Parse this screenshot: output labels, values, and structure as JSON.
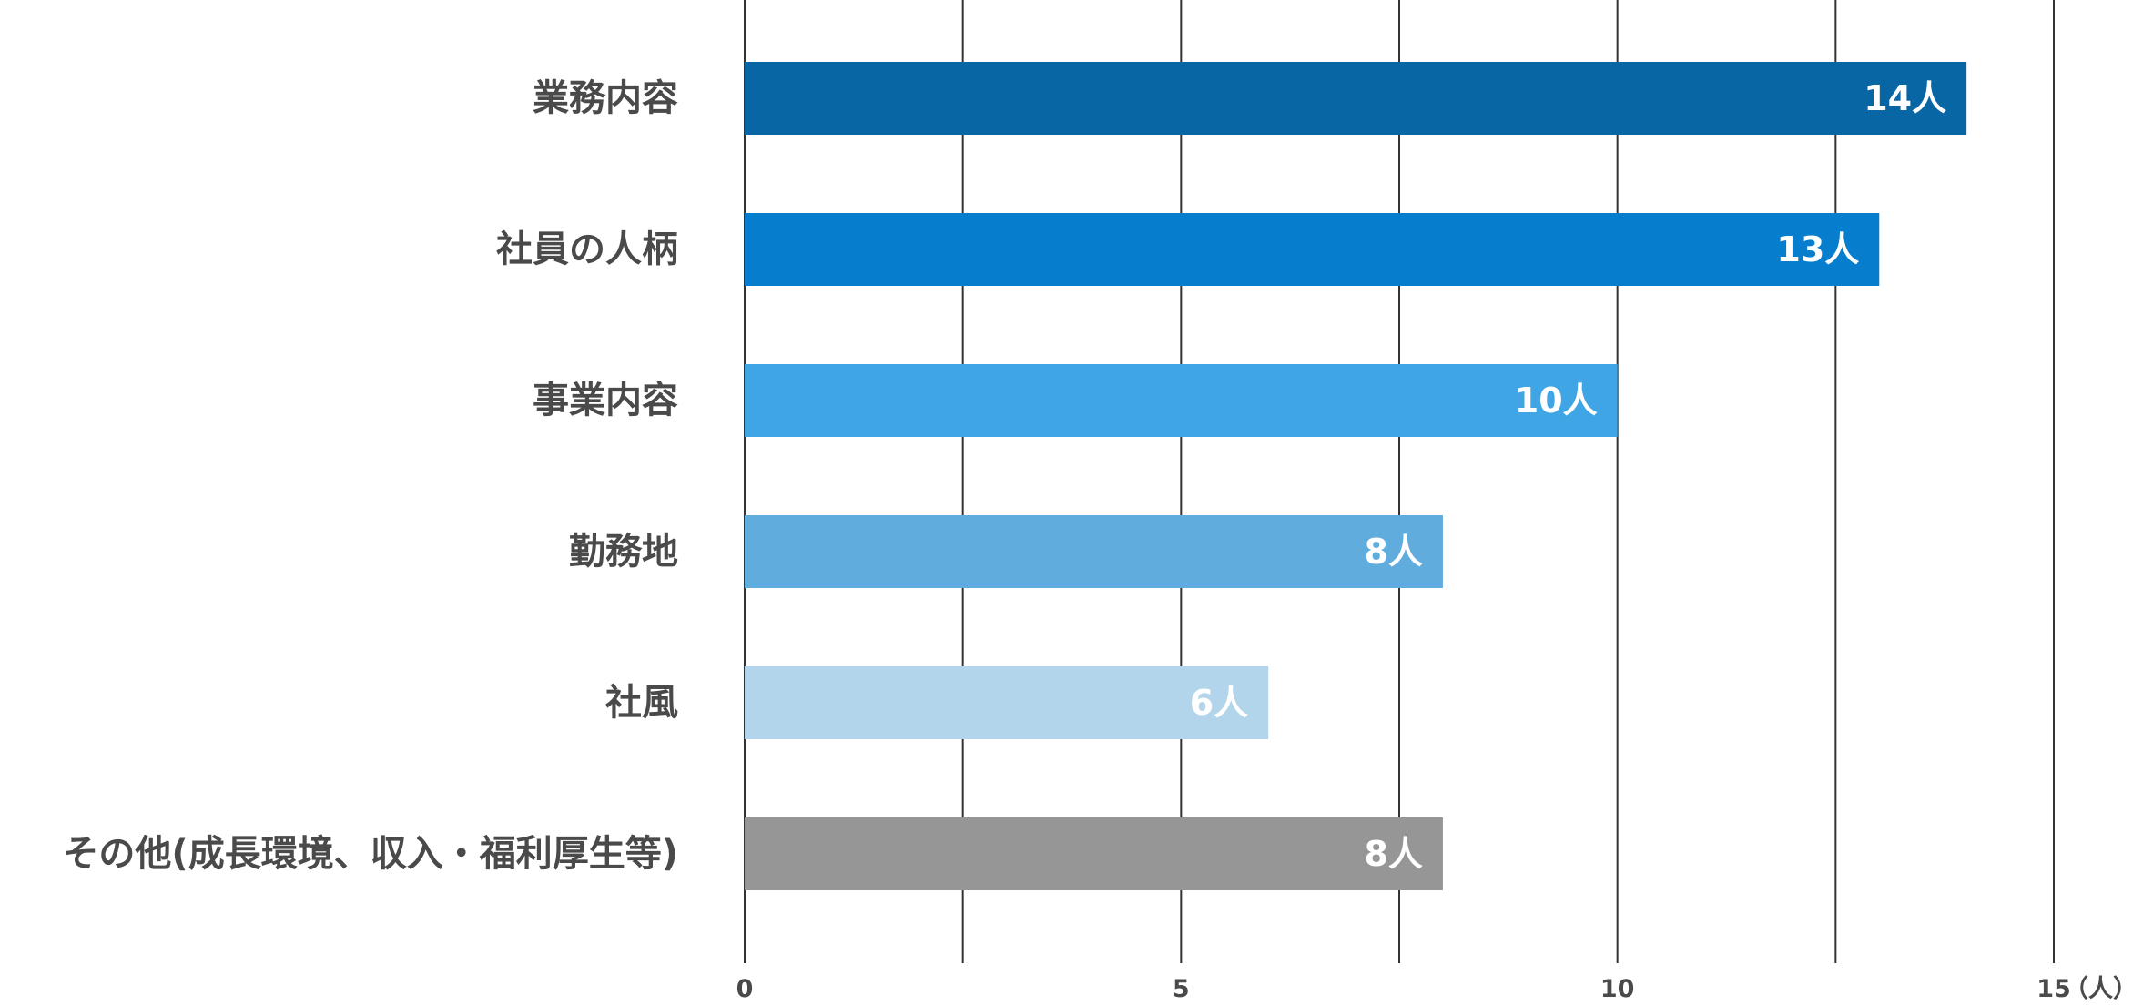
{
  "chart_data": {
    "type": "bar",
    "orientation": "horizontal",
    "categories": [
      "業務内容",
      "社員の人柄",
      "事業内容",
      "勤務地",
      "社風",
      "その他(成長環境、収入・福利厚生等)"
    ],
    "values": [
      14,
      13,
      10,
      8,
      6,
      8
    ],
    "value_labels": [
      "14人",
      "13人",
      "10人",
      "8人",
      "6人",
      "8人"
    ],
    "colors": [
      "#0866a5",
      "#077ecd",
      "#40a5e4",
      "#60acdc",
      "#b2d5eb",
      "#969696"
    ],
    "xlim": [
      0,
      15
    ],
    "x_ticks": [
      0,
      5,
      10,
      15
    ],
    "x_tick_labels": [
      "0",
      "5",
      "10",
      "15"
    ],
    "x_unit_label": "（人）",
    "gridlines": [
      0,
      2.5,
      5,
      7.5,
      10,
      12.5,
      15
    ],
    "grid": true,
    "title": "",
    "xlabel": "",
    "ylabel": ""
  }
}
